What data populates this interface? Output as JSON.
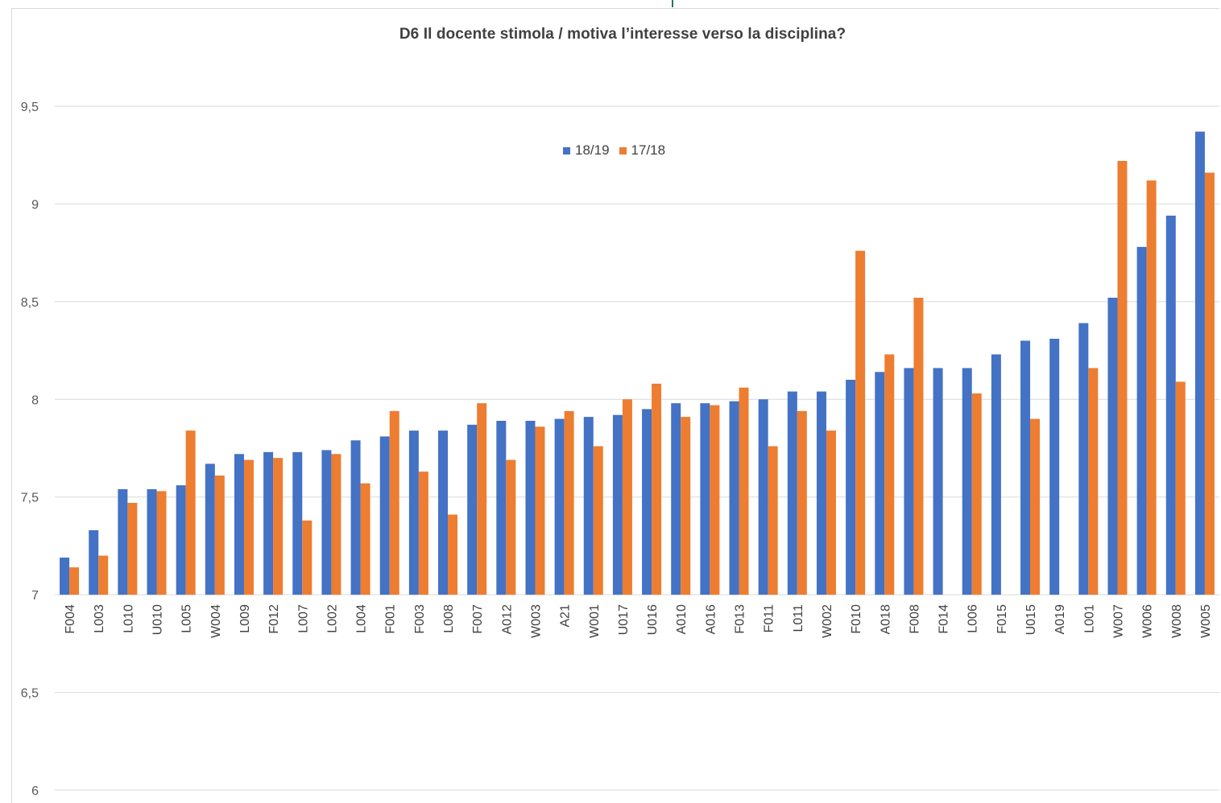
{
  "chart_data": {
    "type": "bar",
    "title": "D6 Il docente stimola / motiva l’interesse verso la disciplina?",
    "xlabel": "",
    "ylabel": "",
    "ylim": [
      6,
      9.5
    ],
    "y_ticks": [
      "6",
      "6,5",
      "7",
      "7,5",
      "8",
      "8,5",
      "9",
      "9,5"
    ],
    "y_tick_values": [
      6,
      6.5,
      7,
      7.5,
      8,
      8.5,
      9,
      9.5
    ],
    "baseline": 7,
    "grid": true,
    "legend_position": "top-center",
    "categories": [
      "F004",
      "L003",
      "L010",
      "U010",
      "L005",
      "W004",
      "L009",
      "F012",
      "L007",
      "L002",
      "L004",
      "F001",
      "F003",
      "L008",
      "F007",
      "A012",
      "W003",
      "A21",
      "W001",
      "U017",
      "U016",
      "A010",
      "A016",
      "F013",
      "F011",
      "L011",
      "W002",
      "F010",
      "A018",
      "F008",
      "F014",
      "L006",
      "F015",
      "U015",
      "A019",
      "L001",
      "W007",
      "W006",
      "W008",
      "W005"
    ],
    "series": [
      {
        "name": "18/19",
        "color": "#4472c4",
        "values": [
          7.19,
          7.33,
          7.54,
          7.54,
          7.56,
          7.67,
          7.72,
          7.73,
          7.73,
          7.74,
          7.79,
          7.81,
          7.84,
          7.84,
          7.87,
          7.89,
          7.89,
          7.9,
          7.91,
          7.92,
          7.95,
          7.98,
          7.98,
          7.99,
          8.0,
          8.04,
          8.04,
          8.1,
          8.14,
          8.16,
          8.16,
          8.16,
          8.23,
          8.3,
          8.31,
          8.39,
          8.52,
          8.78,
          8.94,
          9.37
        ]
      },
      {
        "name": "17/18",
        "color": "#ed7d31",
        "values": [
          7.14,
          7.2,
          7.47,
          7.53,
          7.84,
          7.61,
          7.69,
          7.7,
          7.38,
          7.72,
          7.57,
          7.94,
          7.63,
          7.41,
          7.98,
          7.69,
          7.86,
          7.94,
          7.76,
          8.0,
          8.08,
          7.91,
          7.97,
          8.06,
          7.76,
          7.94,
          7.84,
          8.76,
          8.23,
          8.52,
          null,
          8.03,
          null,
          7.9,
          null,
          8.16,
          9.22,
          9.12,
          8.09,
          9.16
        ]
      }
    ]
  }
}
